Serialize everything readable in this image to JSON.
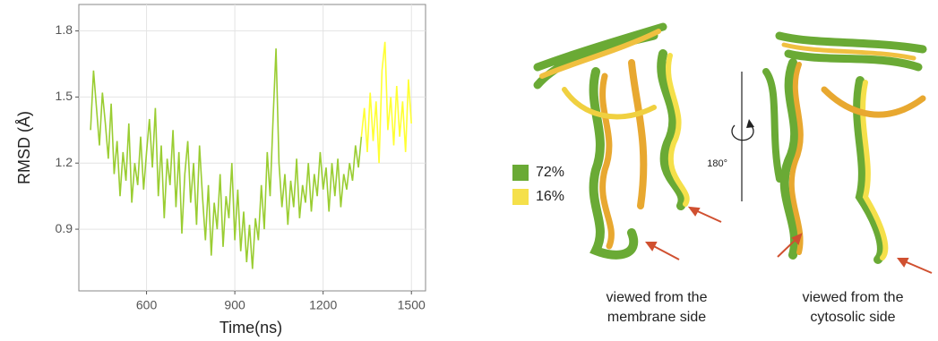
{
  "chart_data": {
    "type": "line",
    "y_label": "RMSD (Å)",
    "x_label": "Time(ns)",
    "xlim": [
      370,
      1548
    ],
    "ylim": [
      0.62,
      1.92
    ],
    "xticks": [
      600,
      900,
      1200,
      1500
    ],
    "yticks": [
      0.9,
      1.2,
      1.5,
      1.8
    ],
    "grid": true,
    "series": [
      {
        "color": "#9acd32",
        "x": [
          410,
          420,
          430,
          440,
          450,
          460,
          470,
          480,
          490,
          500,
          510,
          520,
          530,
          540,
          550,
          560,
          570,
          580,
          590,
          600,
          610,
          620,
          630,
          640,
          650,
          660,
          670,
          680,
          690,
          700,
          710,
          720,
          730,
          740,
          750,
          760,
          770,
          780,
          790,
          800,
          810,
          820,
          830,
          840,
          850,
          860,
          870,
          880,
          890,
          900,
          910,
          920,
          930,
          940,
          950,
          960,
          970,
          980,
          990,
          1000,
          1010,
          1020,
          1030,
          1040,
          1050,
          1060,
          1070,
          1080,
          1090,
          1100,
          1110,
          1120,
          1130,
          1140,
          1150,
          1160,
          1170,
          1180,
          1190,
          1200,
          1210,
          1220,
          1230,
          1240,
          1250,
          1260,
          1270,
          1280,
          1290,
          1300,
          1310,
          1320,
          1330
        ],
        "values": [
          1.35,
          1.62,
          1.45,
          1.28,
          1.52,
          1.38,
          1.22,
          1.47,
          1.15,
          1.3,
          1.05,
          1.25,
          1.12,
          1.38,
          1.02,
          1.2,
          1.1,
          1.32,
          1.08,
          1.25,
          1.4,
          1.18,
          1.45,
          1.05,
          1.28,
          0.95,
          1.22,
          1.1,
          1.35,
          1.0,
          1.25,
          0.88,
          1.15,
          1.3,
          1.02,
          1.2,
          0.92,
          1.28,
          1.05,
          0.85,
          1.1,
          0.78,
          1.02,
          0.9,
          1.15,
          0.82,
          1.05,
          0.95,
          1.2,
          0.85,
          1.08,
          0.8,
          0.98,
          0.75,
          0.92,
          0.72,
          0.95,
          0.85,
          1.1,
          0.9,
          1.25,
          1.05,
          1.4,
          1.72,
          1.2,
          1.0,
          1.15,
          0.92,
          1.12,
          1.0,
          1.22,
          0.95,
          1.1,
          1.02,
          1.2,
          0.98,
          1.15,
          1.05,
          1.25,
          1.08,
          1.18,
          0.98,
          1.2,
          1.05,
          1.22,
          1.0,
          1.15,
          1.08,
          1.2,
          1.12,
          1.28,
          1.18,
          1.32
        ]
      },
      {
        "color": "#ffff33",
        "x": [
          1330,
          1340,
          1350,
          1360,
          1370,
          1380,
          1390,
          1400,
          1410,
          1420,
          1430,
          1440,
          1450,
          1460,
          1470,
          1480,
          1490,
          1500
        ],
        "values": [
          1.32,
          1.45,
          1.25,
          1.52,
          1.3,
          1.48,
          1.2,
          1.62,
          1.75,
          1.35,
          1.5,
          1.28,
          1.55,
          1.32,
          1.48,
          1.25,
          1.58,
          1.38
        ]
      }
    ]
  },
  "structure_legend": [
    {
      "label": "72%",
      "color": "#6aaa35"
    },
    {
      "label": "16%",
      "color": "#f5e04a"
    }
  ],
  "rotation_label": "180°",
  "captions": [
    [
      "viewed from the",
      "membrane side"
    ],
    [
      "viewed from the",
      "cytosolic side"
    ]
  ]
}
